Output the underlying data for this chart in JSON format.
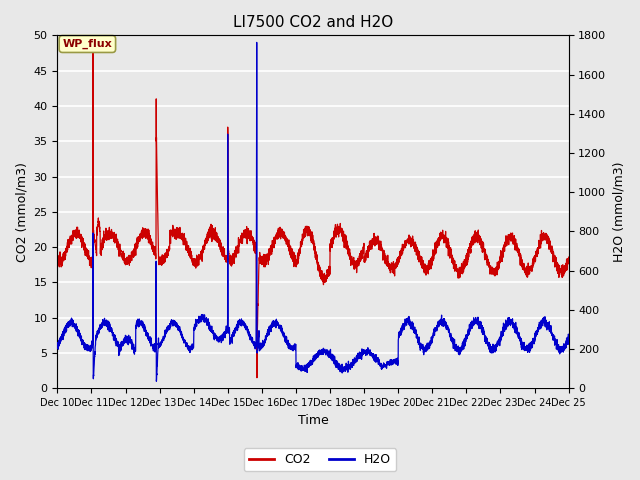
{
  "title": "LI7500 CO2 and H2O",
  "xlabel": "Time",
  "ylabel_left": "CO2 (mmol/m3)",
  "ylabel_right": "H2O (mmol/m3)",
  "ylim_left": [
    0,
    50
  ],
  "ylim_right": [
    0,
    1800
  ],
  "xtick_labels": [
    "Dec 10",
    "Dec 11",
    "Dec 12",
    "Dec 13",
    "Dec 14",
    "Dec 15",
    "Dec 16",
    "Dec 17",
    "Dec 18",
    "Dec 19",
    "Dec 20",
    "Dec 21",
    "Dec 22",
    "Dec 23",
    "Dec 24",
    "Dec 25"
  ],
  "yticks_left": [
    0,
    5,
    10,
    15,
    20,
    25,
    30,
    35,
    40,
    45,
    50
  ],
  "yticks_right": [
    0,
    200,
    400,
    600,
    800,
    1000,
    1200,
    1400,
    1600,
    1800
  ],
  "co2_color": "#cc0000",
  "h2o_color": "#0000cc",
  "fig_facecolor": "#e8e8e8",
  "plot_facecolor": "#e8e8e8",
  "grid_color": "#ffffff",
  "annotation_text": "WP_flux",
  "legend_co2": "CO2",
  "legend_h2o": "H2O",
  "title_fontsize": 11,
  "axis_fontsize": 9,
  "tick_fontsize": 8,
  "linewidth": 0.9
}
